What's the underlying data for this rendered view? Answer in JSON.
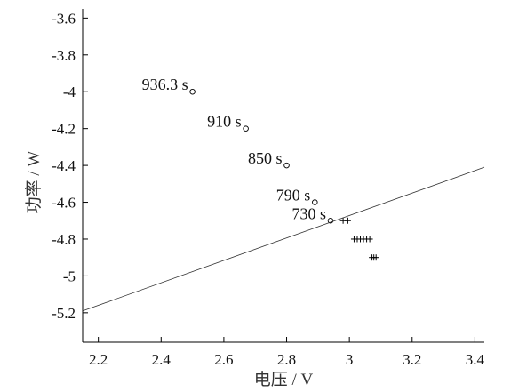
{
  "chart_data": {
    "type": "scatter",
    "title": "",
    "xlabel": "电压 / V",
    "ylabel": "功率 / W",
    "xlim": [
      2.15,
      3.43
    ],
    "ylim": [
      -5.36,
      -3.55
    ],
    "xticks": [
      2.2,
      2.4,
      2.6,
      2.8,
      3.0,
      3.2,
      3.4
    ],
    "xtick_labels": [
      "2.2",
      "2.4",
      "2.6",
      "2.8",
      "3",
      "3.2",
      "3.4"
    ],
    "yticks": [
      -3.6,
      -3.8,
      -4.0,
      -4.2,
      -4.4,
      -4.6,
      -4.8,
      -5.0,
      -5.2
    ],
    "ytick_labels": [
      "-3.6",
      "-3.8",
      "-4",
      "-4.2",
      "-4.4",
      "-4.6",
      "-4.8",
      "-5",
      "-5.2"
    ],
    "grid": false,
    "series": [
      {
        "marker": "circle",
        "points": [
          {
            "x": 2.5,
            "y": -4.0,
            "label": "936.3 s"
          },
          {
            "x": 2.67,
            "y": -4.2,
            "label": "910 s"
          },
          {
            "x": 2.8,
            "y": -4.4,
            "label": "850 s"
          },
          {
            "x": 2.89,
            "y": -4.6,
            "label": "790 s"
          },
          {
            "x": 2.94,
            "y": -4.7,
            "label": "730 s"
          }
        ]
      },
      {
        "marker": "plus",
        "points": [
          {
            "x": 2.98,
            "y": -4.7
          },
          {
            "x": 2.995,
            "y": -4.7
          },
          {
            "x": 3.015,
            "y": -4.8
          },
          {
            "x": 3.025,
            "y": -4.8
          },
          {
            "x": 3.035,
            "y": -4.8
          },
          {
            "x": 3.045,
            "y": -4.8
          },
          {
            "x": 3.055,
            "y": -4.8
          },
          {
            "x": 3.065,
            "y": -4.8
          },
          {
            "x": 3.072,
            "y": -4.9
          },
          {
            "x": 3.078,
            "y": -4.9
          },
          {
            "x": 3.085,
            "y": -4.9
          }
        ]
      },
      {
        "marker": "line",
        "points": [
          {
            "x": 2.15,
            "y": -5.19
          },
          {
            "x": 3.43,
            "y": -4.41
          }
        ]
      }
    ]
  }
}
